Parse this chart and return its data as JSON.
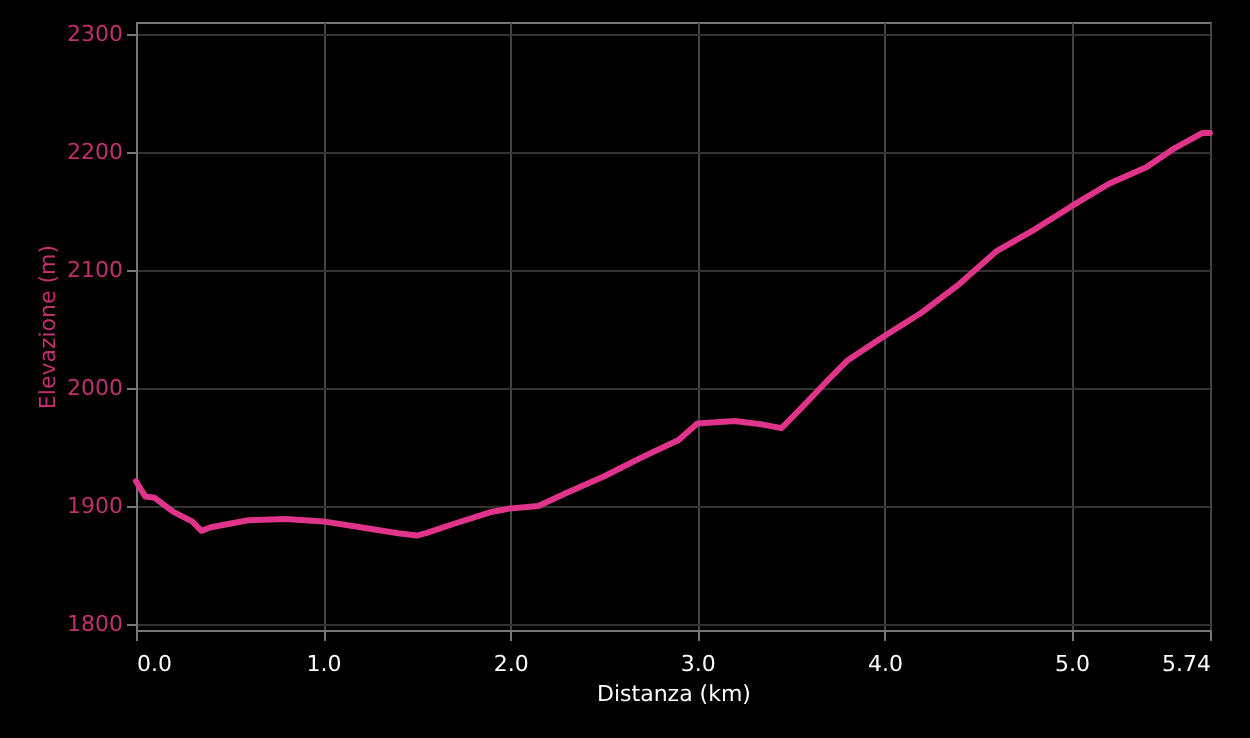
{
  "chart_data": {
    "type": "line",
    "xlabel": "Distanza (km)",
    "ylabel": "Elevazione (m)",
    "x": [
      0,
      0.05,
      0.1,
      0.2,
      0.3,
      0.35,
      0.4,
      0.5,
      0.6,
      0.8,
      1.0,
      1.2,
      1.4,
      1.5,
      1.55,
      1.7,
      1.9,
      2.0,
      2.15,
      2.3,
      2.5,
      2.7,
      2.9,
      3.0,
      3.2,
      3.35,
      3.45,
      3.55,
      3.7,
      3.8,
      4.0,
      4.2,
      4.4,
      4.6,
      4.8,
      5.0,
      5.2,
      5.4,
      5.55,
      5.7,
      5.74
    ],
    "series": [
      {
        "color": "#e0348a",
        "values": [
          1921,
          1908,
          1907,
          1895,
          1887,
          1879,
          1882,
          1885,
          1888,
          1889,
          1887,
          1882,
          1877,
          1875,
          1877,
          1885,
          1895,
          1898,
          1900,
          1911,
          1925,
          1941,
          1956,
          1970,
          1972,
          1969,
          1966,
          1982,
          2007,
          2023,
          2044,
          2064,
          2088,
          2116,
          2134,
          2154,
          2173,
          2187,
          2203,
          2216,
          2216
        ]
      }
    ],
    "xlim": [
      0,
      5.74
    ],
    "xticks": [
      {
        "value": 0,
        "label": "0.0"
      },
      {
        "value": 1,
        "label": "1.0"
      },
      {
        "value": 2,
        "label": "2.0"
      },
      {
        "value": 3,
        "label": "3.0"
      },
      {
        "value": 4,
        "label": "4.0"
      },
      {
        "value": 5,
        "label": "5.0"
      },
      5.74
    ],
    "ylim": [
      1795,
      2310
    ],
    "yticks": [
      1800,
      1900,
      2000,
      2100,
      2200,
      2300
    ],
    "grid": true,
    "marker": "none",
    "line_style": "solid"
  }
}
